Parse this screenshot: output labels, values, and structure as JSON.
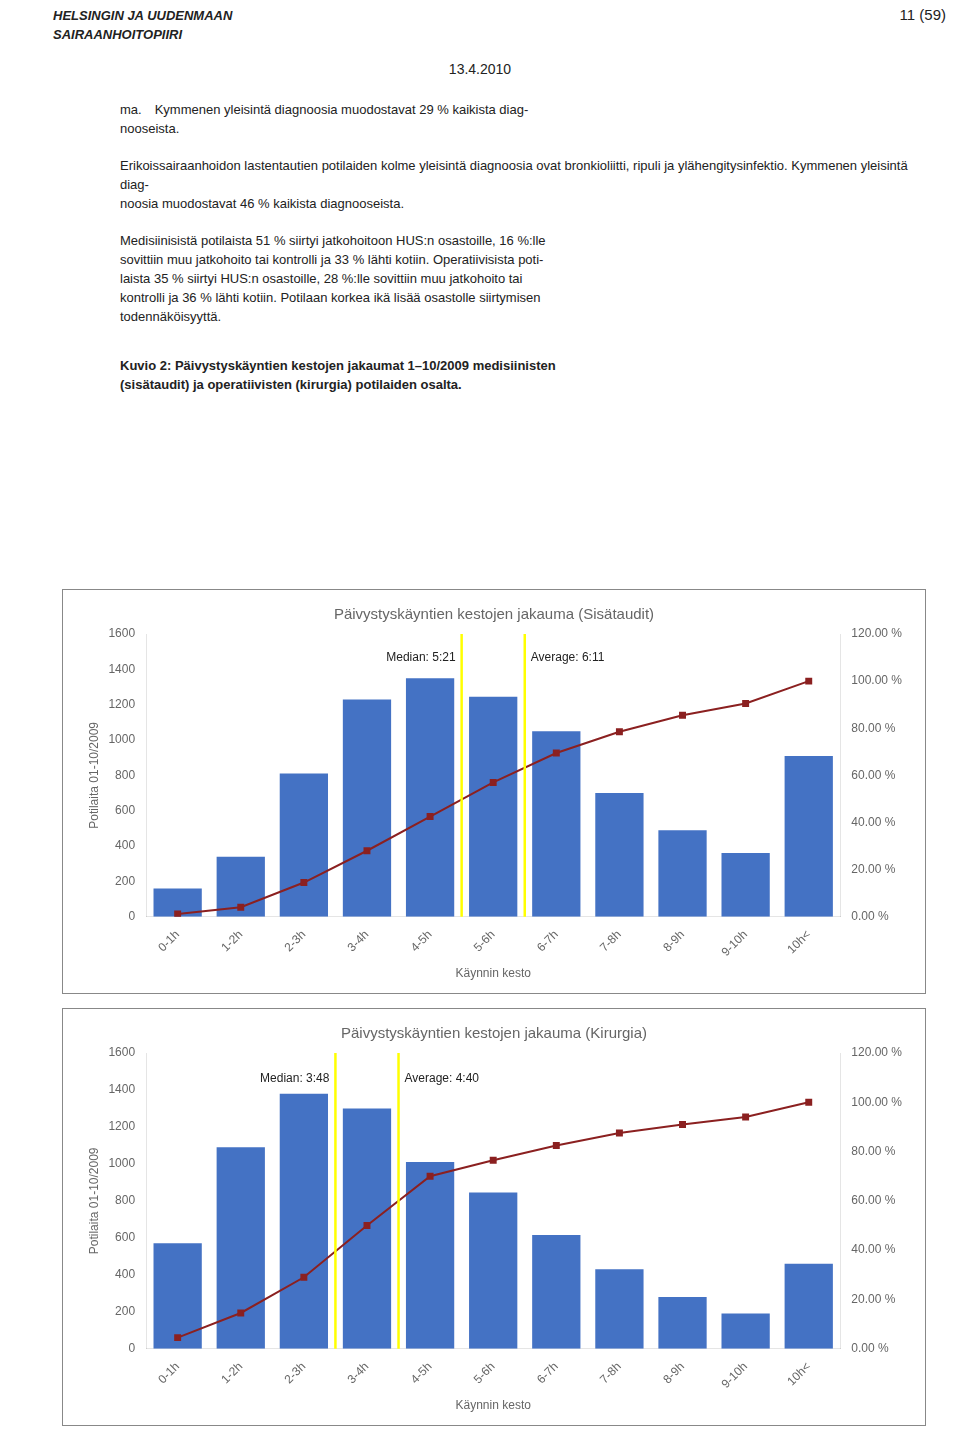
{
  "page_header": [
    "HELSINGIN JA UUDENMAAN",
    "SAIRAANHOITOPIIRI"
  ],
  "page_number": "11 (59)",
  "page_date": "13.4.2010",
  "body_paragraphs": [
    [
      "ma. Kymmenen yleisintä diagnoosia muodostavat 29 % kaikista diag-",
      "nooseista."
    ],
    [
      "Erikoissairaanhoidon lastentautien potilaiden kolme yleisintä diagnoosia ovat bronkioliitti, ripuli ja ylähengitysinfektio. Kymmenen yleisintä diag-",
      "noosia muodostavat 46 % kaikista diagnooseista."
    ],
    [
      "Medisiinisistä potilaista 51 % siirtyi jatkohoitoon HUS:n osastoille, 16 %:lle",
      "sovittiin muu jatkohoito tai kontrolli ja 33 % lähti kotiin. Operatiivisista poti-",
      "laista 35 % siirtyi HUS:n osastoille, 28 %:lle sovittiin muu jatkohoito tai",
      "kontrolli ja 36 % lähti kotiin. Potilaan korkea ikä lisää osastolle siirtymisen",
      "todennäköisyyttä."
    ]
  ],
  "caption": [
    "Kuvio 2: Päivystyskäyntien kestojen jakaumat 1–10/2009 medisiinisten",
    "(sisätaudit) ja operatiivisten (kirurgia) potilaiden osalta."
  ],
  "chart_data": [
    {
      "type": "bar",
      "title": "Päivystyskäyntien kestojen jakauma (Sisätaudit)",
      "x_label": "Käynnin kesto",
      "y_label": "Potilaita 01-10/2009",
      "categories": [
        "0-1h",
        "1-2h",
        "2-3h",
        "3-4h",
        "4-5h",
        "5-6h",
        "6-7h",
        "7-8h",
        "8-9h",
        "9-10h",
        "10h<"
      ],
      "series": [
        {
          "type": "bar",
          "color": "#4472C4",
          "values": [
            160,
            340,
            810,
            1230,
            1350,
            1245,
            1050,
            700,
            490,
            360,
            910
          ]
        },
        {
          "type": "line",
          "axis": "y2",
          "color": "#8B2020",
          "marker": "square",
          "values": [
            1.2,
            4.0,
            14.5,
            28.0,
            42.5,
            57.0,
            69.5,
            78.5,
            85.5,
            90.5,
            100.0
          ]
        }
      ],
      "annotations": [
        {
          "type": "vline",
          "x": 4.5,
          "y": 1430,
          "text": "Median: 5:21",
          "color": "yellow"
        },
        {
          "type": "vline",
          "x": 5.5,
          "y": 1430,
          "text": "Average: 6:11",
          "color": "yellow"
        }
      ],
      "ylim": [
        0,
        1600
      ],
      "yticks": [
        0,
        200,
        400,
        600,
        800,
        1000,
        1200,
        1400,
        1600
      ],
      "y2lim": [
        0,
        120
      ],
      "y2ticks": [
        {
          "value": 0,
          "label": "0.00 %"
        },
        {
          "value": 20,
          "label": "20.00 %"
        },
        {
          "value": 40,
          "label": "40.00 %"
        },
        {
          "value": 60,
          "label": "60.00 %"
        },
        {
          "value": 80,
          "label": "80.00 %"
        },
        {
          "value": 100,
          "label": "100.00 %"
        },
        {
          "value": 120,
          "label": "120.00 %"
        }
      ],
      "grid": false
    },
    {
      "type": "bar",
      "title": "Päivystyskäyntien kestojen jakauma (Kirurgia)",
      "x_label": "Käynnin kesto",
      "y_label": "Potilaita 01-10/2009",
      "categories": [
        "0-1h",
        "1-2h",
        "2-3h",
        "3-4h",
        "4-5h",
        "5-6h",
        "6-7h",
        "7-8h",
        "8-9h",
        "9-10h",
        "10h<"
      ],
      "series": [
        {
          "type": "bar",
          "color": "#4472C4",
          "values": [
            570,
            1090,
            1380,
            1300,
            1010,
            845,
            615,
            430,
            280,
            190,
            460
          ]
        },
        {
          "type": "line",
          "axis": "y2",
          "color": "#8B2020",
          "marker": "square",
          "values": [
            4.5,
            14.5,
            29.0,
            50.0,
            70.0,
            76.5,
            82.5,
            87.5,
            91.0,
            94.0,
            100.0
          ]
        }
      ],
      "annotations": [
        {
          "type": "vline",
          "x": 2.5,
          "y": 1430,
          "text": "Median: 3:48",
          "color": "yellow"
        },
        {
          "type": "vline",
          "x": 3.5,
          "y": 1430,
          "text": "Average: 4:40",
          "color": "yellow"
        }
      ],
      "ylim": [
        0,
        1600
      ],
      "yticks": [
        0,
        200,
        400,
        600,
        800,
        1000,
        1200,
        1400,
        1600
      ],
      "y2lim": [
        0,
        120
      ],
      "y2ticks": [
        {
          "value": 0,
          "label": "0.00 %"
        },
        {
          "value": 20,
          "label": "20.00 %"
        },
        {
          "value": 40,
          "label": "40.00 %"
        },
        {
          "value": 60,
          "label": "60.00 %"
        },
        {
          "value": 80,
          "label": "80.00 %"
        },
        {
          "value": 100,
          "label": "100.00 %"
        },
        {
          "value": 120,
          "label": "120.00 %"
        }
      ],
      "grid": false
    }
  ]
}
